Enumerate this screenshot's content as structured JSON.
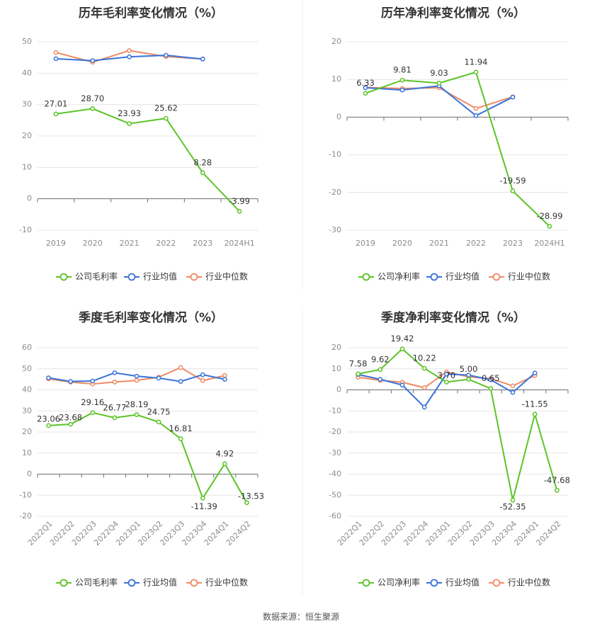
{
  "colors": {
    "company": "#5bc427",
    "industry_avg": "#3a73d9",
    "industry_median": "#f08a64"
  },
  "legend": {
    "gross": [
      "公司毛利率",
      "行业均值",
      "行业中位数"
    ],
    "net": [
      "公司净利率",
      "行业均值",
      "行业中位数"
    ]
  },
  "source": "数据来源：恒生聚源",
  "chart_data": [
    {
      "id": "annual-gross",
      "type": "line",
      "title": "历年毛利率变化情况（%）",
      "categories": [
        "2019",
        "2020",
        "2021",
        "2022",
        "2023",
        "2024H1"
      ],
      "ylim": [
        -10,
        50
      ],
      "yticks": [
        -10,
        0,
        10,
        20,
        30,
        40,
        50
      ],
      "grid": true,
      "legend_position": "bottom",
      "legend_key": "gross",
      "series": [
        {
          "name": "公司毛利率",
          "color_key": "company",
          "values": [
            27.01,
            28.7,
            23.93,
            25.62,
            8.28,
            -3.99
          ],
          "labels": [
            "27.01",
            "28.70",
            "23.93",
            "25.62",
            "8.28",
            "-3.99"
          ]
        },
        {
          "name": "行业均值",
          "color_key": "industry_avg",
          "values": [
            44.6,
            44.0,
            45.2,
            45.7,
            44.5,
            null
          ]
        },
        {
          "name": "行业中位数",
          "color_key": "industry_median",
          "values": [
            46.6,
            43.5,
            47.2,
            45.3,
            44.5,
            null
          ]
        }
      ]
    },
    {
      "id": "annual-net",
      "type": "line",
      "title": "历年净利率变化情况（%）",
      "categories": [
        "2019",
        "2020",
        "2021",
        "2022",
        "2023",
        "2024H1"
      ],
      "ylim": [
        -30,
        20
      ],
      "yticks": [
        -30,
        -20,
        -10,
        0,
        10,
        20
      ],
      "grid": true,
      "legend_position": "bottom",
      "legend_key": "net",
      "series": [
        {
          "name": "公司净利率",
          "color_key": "company",
          "values": [
            6.33,
            9.81,
            9.03,
            11.94,
            -19.59,
            -28.99
          ],
          "labels": [
            "6.33",
            "9.81",
            "9.03",
            "11.94",
            "-19.59",
            "-28.99"
          ]
        },
        {
          "name": "行业均值",
          "color_key": "industry_avg",
          "values": [
            7.8,
            7.2,
            8.3,
            0.4,
            5.3,
            null
          ]
        },
        {
          "name": "行业中位数",
          "color_key": "industry_median",
          "values": [
            7.9,
            7.6,
            7.8,
            2.3,
            5.4,
            null
          ]
        }
      ]
    },
    {
      "id": "quarterly-gross",
      "type": "line",
      "title": "季度毛利率变化情况（%）",
      "categories": [
        "2022Q1",
        "2022Q2",
        "2022Q3",
        "2022Q4",
        "2023Q1",
        "2023Q2",
        "2023Q3",
        "2023Q4",
        "2024Q1",
        "2024Q2"
      ],
      "ylim": [
        -20,
        60
      ],
      "yticks": [
        -20,
        -10,
        0,
        10,
        20,
        30,
        40,
        50,
        60
      ],
      "grid": true,
      "rotated_xlabels": true,
      "legend_position": "bottom",
      "legend_key": "gross",
      "series": [
        {
          "name": "公司毛利率",
          "color_key": "company",
          "values": [
            23.06,
            23.68,
            29.16,
            26.77,
            28.19,
            24.75,
            16.81,
            -11.39,
            4.92,
            -13.53
          ],
          "labels": [
            "23.06",
            "23.68",
            "29.16",
            "26.77",
            "28.19",
            "24.75",
            "16.81",
            "-11.39",
            "4.92",
            "-13.53"
          ]
        },
        {
          "name": "行业均值",
          "color_key": "industry_avg",
          "values": [
            45.7,
            44.0,
            44.2,
            48.1,
            46.5,
            45.6,
            44.0,
            47.2,
            45.0,
            null
          ]
        },
        {
          "name": "行业中位数",
          "color_key": "industry_median",
          "values": [
            45.2,
            43.7,
            42.8,
            43.7,
            44.5,
            46.0,
            50.6,
            44.4,
            46.8,
            null
          ]
        }
      ]
    },
    {
      "id": "quarterly-net",
      "type": "line",
      "title": "季度净利率变化情况（%）",
      "categories": [
        "2022Q1",
        "2022Q2",
        "2022Q3",
        "2022Q4",
        "2023Q1",
        "2023Q2",
        "2023Q3",
        "2023Q4",
        "2024Q1",
        "2024Q2"
      ],
      "ylim": [
        -60,
        20
      ],
      "yticks": [
        -60,
        -50,
        -40,
        -30,
        -20,
        -10,
        0,
        10,
        20
      ],
      "grid": true,
      "rotated_xlabels": true,
      "legend_position": "bottom",
      "legend_key": "net",
      "series": [
        {
          "name": "公司净利率",
          "color_key": "company",
          "values": [
            7.58,
            9.62,
            19.42,
            10.22,
            3.7,
            5.0,
            0.65,
            -52.35,
            -11.55,
            -47.68
          ],
          "labels": [
            "7.58",
            "9.62",
            "19.42",
            "10.22",
            "3.70",
            "5.00",
            "0.65",
            "-52.35",
            "-11.55",
            "-47.68"
          ]
        },
        {
          "name": "行业均值",
          "color_key": "industry_avg",
          "values": [
            7.3,
            5.0,
            2.3,
            -8.2,
            7.5,
            7.0,
            4.8,
            -1.2,
            8.0,
            null
          ]
        },
        {
          "name": "行业中位数",
          "color_key": "industry_median",
          "values": [
            6.0,
            4.5,
            3.6,
            1.0,
            8.5,
            6.2,
            5.3,
            1.9,
            6.8,
            null
          ]
        }
      ]
    }
  ]
}
